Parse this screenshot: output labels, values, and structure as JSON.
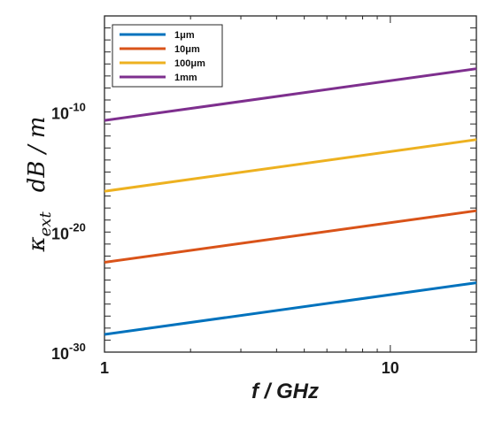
{
  "chart_data": {
    "type": "line",
    "xlabel": "f / GHz",
    "ylabel": "κext   dB / m",
    "xscale": "log",
    "yscale": "log",
    "xlim": [
      1,
      20
    ],
    "ylim": [
      1e-30,
      0.01
    ],
    "xticks": [
      {
        "value": 1,
        "label": "1"
      },
      {
        "value": 10,
        "label": "10"
      }
    ],
    "yticks": [
      {
        "value": 1e-30,
        "label": "10",
        "exp": "-30"
      },
      {
        "value": 1e-20,
        "label": "10",
        "exp": "-20"
      },
      {
        "value": 1e-10,
        "label": "10",
        "exp": "-10"
      }
    ],
    "grid": false,
    "legend_position": "top-left",
    "series": [
      {
        "name": "1μm",
        "color": "#0072BD",
        "x": [
          1,
          20
        ],
        "y": [
          3e-29,
          6e-25
        ]
      },
      {
        "name": "10μm",
        "color": "#D95319",
        "x": [
          1,
          20
        ],
        "y": [
          3e-23,
          6e-19
        ]
      },
      {
        "name": "100μm",
        "color": "#EDB120",
        "x": [
          1,
          20
        ],
        "y": [
          2.5e-17,
          5e-13
        ]
      },
      {
        "name": "1mm",
        "color": "#7E2F8E",
        "x": [
          1,
          20
        ],
        "y": [
          2e-11,
          4e-07
        ]
      }
    ]
  }
}
